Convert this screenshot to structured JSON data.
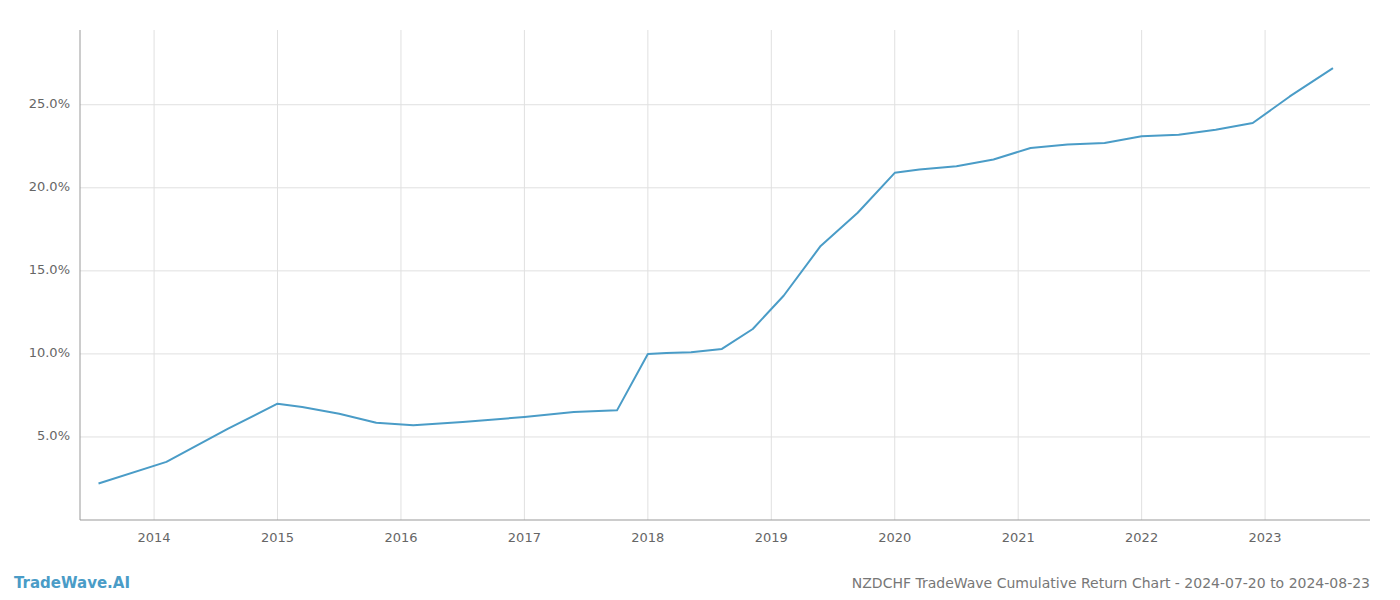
{
  "chart_data": {
    "type": "line",
    "title": "NZDCHF TradeWave Cumulative Return Chart - 2024-07-20 to 2024-08-23",
    "annotations": [
      "TradeWave.AI"
    ],
    "x": [
      2013.55,
      2014.1,
      2014.6,
      2015.0,
      2015.2,
      2015.5,
      2015.8,
      2016.1,
      2016.5,
      2017.0,
      2017.4,
      2017.75,
      2018.0,
      2018.15,
      2018.35,
      2018.6,
      2018.85,
      2019.1,
      2019.4,
      2019.7,
      2020.0,
      2020.2,
      2020.5,
      2020.8,
      2021.1,
      2021.4,
      2021.7,
      2022.0,
      2022.3,
      2022.6,
      2022.9,
      2023.2,
      2023.55
    ],
    "values": [
      2.2,
      3.5,
      5.5,
      7.0,
      6.8,
      6.4,
      5.85,
      5.7,
      5.9,
      6.2,
      6.5,
      6.6,
      10.0,
      10.05,
      10.1,
      10.3,
      11.5,
      13.5,
      16.5,
      18.5,
      20.9,
      21.1,
      21.3,
      21.7,
      22.4,
      22.6,
      22.7,
      23.1,
      23.2,
      23.5,
      23.9,
      25.5,
      27.2
    ],
    "color": "#4a9cc7",
    "xlim": [
      2013.4,
      2023.85
    ],
    "ylim": [
      0.0,
      29.5
    ],
    "xticks": [
      2014,
      2015,
      2016,
      2017,
      2018,
      2019,
      2020,
      2021,
      2022,
      2023
    ],
    "yticks": [
      {
        "value": 5.0,
        "label": "5.0%"
      },
      {
        "value": 10.0,
        "label": "10.0%"
      },
      {
        "value": 15.0,
        "label": "15.0%"
      },
      {
        "value": 20.0,
        "label": "20.0%"
      },
      {
        "value": 25.0,
        "label": "25.0%"
      }
    ],
    "grid": true
  }
}
